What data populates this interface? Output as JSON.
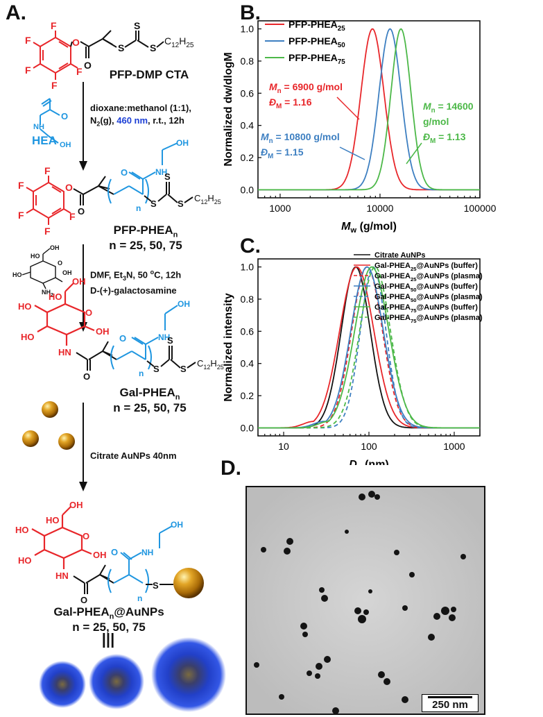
{
  "panels": {
    "a": "A.",
    "b": "B.",
    "c": "C.",
    "d": "D."
  },
  "scheme": {
    "cta_name": "PFP-DMP CTA",
    "step1": {
      "line1": "dioxane:methanol (1:1),",
      "line2_prefix": "N",
      "line2_sub": "2",
      "line2_mid": "(g), ",
      "line2_highlight": "460 nm",
      "line2_suffix": ", r.t., 12h",
      "monomer": "HEA"
    },
    "pfp_phea": {
      "name": "PFP-PHEA",
      "sub": "n",
      "dp": "n = 25, 50, 75"
    },
    "step2": {
      "line1_prefix": "DMF, Et",
      "line1_sub": "3",
      "line1_mid": "N, 50 ",
      "line1_sup": "o",
      "line1_suffix": "C, 12h",
      "line2": "D-(+)-galactosamine"
    },
    "gal_phea": {
      "name": "Gal-PHEA",
      "sub": "n",
      "dp": "n = 25, 50, 75"
    },
    "step3": {
      "label": "Citrate AuNPs 40nm"
    },
    "gal_aunp": {
      "name": "Gal-PHEA",
      "sub": "n",
      "suffix": "@AuNPs",
      "dp": "n = 25, 50, 75"
    },
    "equiv_symbol": "|||",
    "atoms": {
      "F": "F",
      "O": "O",
      "S": "S",
      "HO": "HO",
      "OH": "OH",
      "NH": "NH",
      "HN": "HN",
      "NH2": "NH",
      "two": "2",
      "C12": "C",
      "C12sub": "12",
      "H25": "H",
      "H25sub": "25",
      "n": "n"
    }
  },
  "colors": {
    "red": "#e8262a",
    "blue": "#1f96e0",
    "green": "#4cb848",
    "steel": "#3d7fc1",
    "highlight": "#1c3fd6"
  },
  "chart_data": [
    {
      "type": "line",
      "panel": "B",
      "xlabel_main": "M",
      "xlabel_sub": "w",
      "xlabel_rest": " (g/mol)",
      "ylabel": "Normalized dw/dlogM",
      "xscale": "log",
      "xlim": [
        600,
        100000
      ],
      "ylim": [
        -0.05,
        1.05
      ],
      "xticks": [
        1000,
        10000,
        100000
      ],
      "xtick_labels": [
        "1000",
        "10000",
        "100000"
      ],
      "yticks": [
        0.0,
        0.2,
        0.4,
        0.6,
        0.8,
        1.0
      ],
      "ytick_labels": [
        "0.0",
        "0.2",
        "0.4",
        "0.6",
        "0.8",
        "1.0"
      ],
      "legend_position": "top-left",
      "series": [
        {
          "legend": "PFP-PHEA",
          "legend_sub": "25",
          "color": "#e8262a",
          "peak": 8400,
          "width": 0.115,
          "annotation": {
            "mn": "= 6900 g/mol",
            "dm": "= 1.16"
          }
        },
        {
          "legend": "PFP-PHEA",
          "legend_sub": "50",
          "color": "#3d7fc1",
          "peak": 12600,
          "width": 0.11,
          "annotation": {
            "mn": "= 10800 g/mol",
            "dm": "= 1.15"
          }
        },
        {
          "legend": "PFP-PHEA",
          "legend_sub": "75",
          "color": "#4cb848",
          "peak": 16200,
          "width": 0.1,
          "annotation": {
            "mn": "= 14600",
            "mn2": "g/mol",
            "dm": "= 1.13"
          }
        }
      ],
      "annot_symbols": {
        "m": "M",
        "m_sub": "n",
        "d": "Đ",
        "d_sub": "M"
      }
    },
    {
      "type": "line",
      "panel": "C",
      "xlabel_main": "D",
      "xlabel_sub": "h",
      "xlabel_rest": " (nm)",
      "ylabel": "Normalized intensity",
      "xscale": "log",
      "xlim": [
        5,
        2000
      ],
      "ylim": [
        -0.05,
        1.05
      ],
      "xticks": [
        10,
        100,
        1000
      ],
      "xtick_labels": [
        "10",
        "100",
        "1000"
      ],
      "yticks": [
        0.0,
        0.2,
        0.4,
        0.6,
        0.8,
        1.0
      ],
      "ytick_labels": [
        "0.0",
        "0.2",
        "0.4",
        "0.6",
        "0.8",
        "1.0"
      ],
      "legend_position": "top-right",
      "series": [
        {
          "legend": "Citrate AuNPs",
          "color": "#111111",
          "dash": false,
          "peak": 70,
          "width": 0.17
        },
        {
          "legend": "Gal-PHEA",
          "legend_sub": "25",
          "legend_suffix": "@AuNPs (buffer)",
          "color": "#e8262a",
          "dash": false,
          "peak": 72,
          "width": 0.2,
          "shoulder": true
        },
        {
          "legend": "Gal-PHEA",
          "legend_sub": "25",
          "legend_suffix": "@AuNPs (plasma)",
          "color": "#e8262a",
          "dash": true,
          "peak": 95,
          "width": 0.18
        },
        {
          "legend": "Gal-PHEA",
          "legend_sub": "50",
          "legend_suffix": "@AuNPs (buffer)",
          "color": "#3d7fc1",
          "dash": false,
          "peak": 95,
          "width": 0.19,
          "shoulder": true
        },
        {
          "legend": "Gal-PHEA",
          "legend_sub": "50",
          "legend_suffix": "@AuNPs (plasma)",
          "color": "#3d7fc1",
          "dash": true,
          "peak": 112,
          "width": 0.15
        },
        {
          "legend": "Gal-PHEA",
          "legend_sub": "75",
          "legend_suffix": "@AuNPs (buffer)",
          "color": "#4cb848",
          "dash": false,
          "peak": 108,
          "width": 0.2,
          "shoulder": true
        },
        {
          "legend": "Gal-PHEA",
          "legend_sub": "75",
          "legend_suffix": "@AuNPs (plasma)",
          "color": "#4cb848",
          "dash": true,
          "peak": 118,
          "width": 0.18
        }
      ]
    }
  ],
  "tem": {
    "scale_label": "250 nm"
  }
}
